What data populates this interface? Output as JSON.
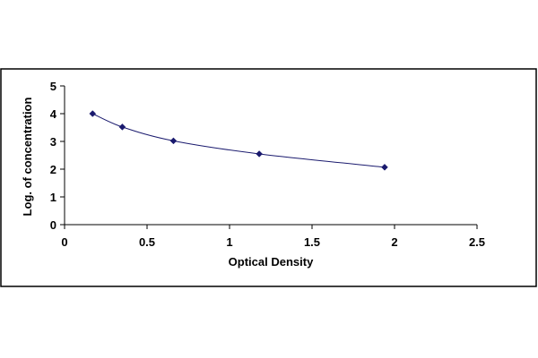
{
  "chart_data": {
    "type": "scatter",
    "title": "",
    "xlabel": "Optical Density",
    "ylabel": "Log. of concentration",
    "xlim": [
      0,
      2.5
    ],
    "ylim": [
      0,
      5
    ],
    "x_ticks": [
      0,
      0.5,
      1,
      1.5,
      2,
      2.5
    ],
    "x_tick_labels": [
      "0",
      "0.5",
      "1",
      "1.5",
      "2",
      "2.5"
    ],
    "y_ticks": [
      0,
      1,
      2,
      3,
      4,
      5
    ],
    "y_tick_labels": [
      "0",
      "1",
      "2",
      "3",
      "4",
      "5"
    ],
    "grid": false,
    "legend": "none",
    "fit_line": "smooth",
    "marker": "diamond",
    "series": [
      {
        "color": "#1a1a6e",
        "x": [
          0.17,
          0.35,
          0.66,
          1.18,
          1.94
        ],
        "y": [
          4.0,
          3.52,
          3.02,
          2.55,
          2.07
        ]
      }
    ]
  }
}
